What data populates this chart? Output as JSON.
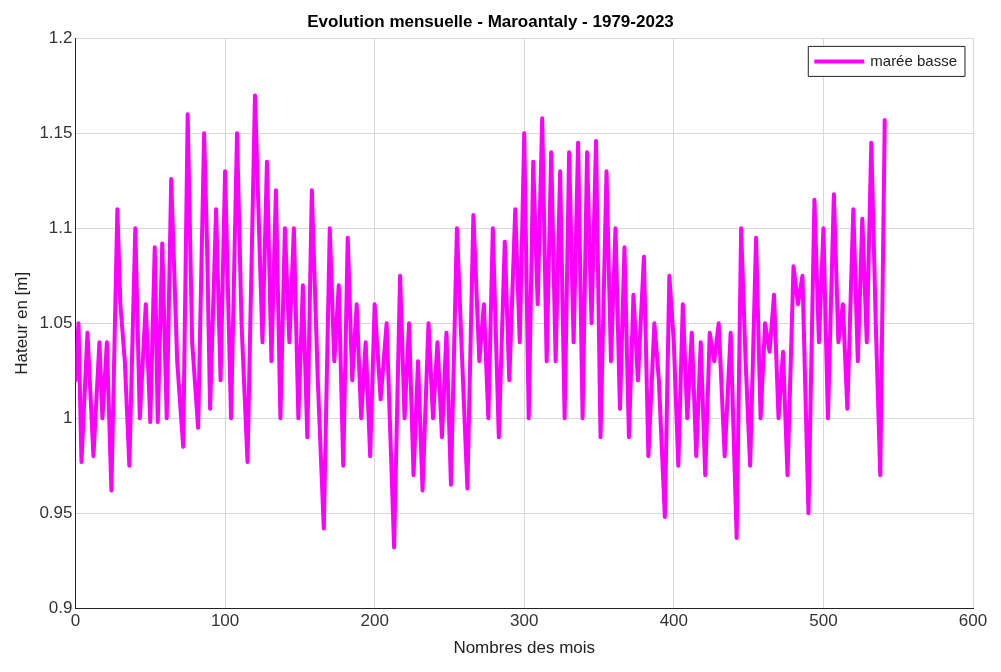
{
  "chart_data": {
    "type": "line",
    "title": "Evolution mensuelle - Maroantaly - 1979-2023",
    "xlabel": "Nombres des mois",
    "ylabel": "Hateur en [m]",
    "x": [
      0,
      2,
      4,
      8,
      12,
      16,
      18,
      21,
      24,
      28,
      30,
      33,
      36,
      40,
      43,
      47,
      50,
      53,
      55,
      58,
      61,
      64,
      68,
      72,
      75,
      78,
      82,
      86,
      88,
      90,
      94,
      97,
      100,
      104,
      108,
      111,
      115,
      120,
      125,
      128,
      131,
      134,
      137,
      140,
      143,
      146,
      149,
      152,
      155,
      158,
      162,
      166,
      170,
      173,
      176,
      179,
      182,
      185,
      188,
      191,
      194,
      197,
      200,
      204,
      208,
      213,
      217,
      220,
      223,
      226,
      229,
      232,
      236,
      239,
      242,
      245,
      248,
      251,
      255,
      258,
      262,
      266,
      270,
      273,
      276,
      279,
      283,
      287,
      290,
      294,
      297,
      300,
      303,
      306,
      309,
      312,
      315,
      318,
      321,
      324,
      327,
      330,
      333,
      336,
      339,
      342,
      345,
      348,
      351,
      355,
      358,
      361,
      364,
      367,
      370,
      373,
      376,
      380,
      383,
      387,
      390,
      394,
      397,
      400,
      403,
      406,
      409,
      412,
      415,
      418,
      421,
      424,
      427,
      430,
      434,
      438,
      442,
      445,
      448,
      451,
      455,
      458,
      461,
      464,
      467,
      470,
      473,
      476,
      480,
      483,
      486,
      490,
      494,
      497,
      500,
      503,
      507,
      510,
      513,
      516,
      520,
      523,
      526,
      529,
      532,
      535,
      538,
      541
    ],
    "series": [
      {
        "name": "marée basse",
        "color": "#ff00ff",
        "values": [
          1.02,
          1.05,
          0.977,
          1.045,
          0.98,
          1.04,
          1.0,
          1.04,
          0.962,
          1.11,
          1.06,
          1.03,
          0.975,
          1.1,
          1.0,
          1.06,
          0.998,
          1.09,
          0.998,
          1.092,
          1.0,
          1.126,
          1.03,
          0.985,
          1.16,
          1.04,
          0.995,
          1.15,
          1.09,
          1.005,
          1.11,
          1.02,
          1.13,
          1.0,
          1.15,
          1.05,
          0.977,
          1.17,
          1.04,
          1.135,
          1.03,
          1.12,
          1.0,
          1.1,
          1.04,
          1.1,
          1.0,
          1.07,
          0.99,
          1.12,
          1.02,
          0.942,
          1.1,
          1.03,
          1.07,
          0.975,
          1.095,
          1.02,
          1.06,
          1.0,
          1.04,
          0.98,
          1.06,
          1.01,
          1.05,
          0.932,
          1.075,
          1.0,
          1.05,
          0.97,
          1.03,
          0.962,
          1.05,
          1.0,
          1.04,
          0.99,
          1.045,
          0.965,
          1.1,
          1.04,
          0.963,
          1.107,
          1.03,
          1.06,
          1.0,
          1.1,
          0.99,
          1.093,
          1.02,
          1.11,
          1.04,
          1.15,
          1.0,
          1.135,
          1.06,
          1.158,
          1.03,
          1.14,
          1.03,
          1.13,
          1.0,
          1.14,
          1.04,
          1.145,
          1.0,
          1.14,
          1.05,
          1.146,
          0.99,
          1.13,
          1.03,
          1.1,
          1.005,
          1.09,
          0.99,
          1.065,
          1.02,
          1.085,
          0.98,
          1.05,
          1.02,
          0.948,
          1.075,
          1.04,
          0.975,
          1.06,
          1.0,
          1.045,
          0.98,
          1.04,
          0.97,
          1.045,
          1.03,
          1.05,
          0.98,
          1.045,
          0.937,
          1.1,
          1.03,
          0.975,
          1.095,
          1.0,
          1.05,
          1.035,
          1.065,
          1.0,
          1.035,
          0.97,
          1.08,
          1.06,
          1.075,
          0.95,
          1.115,
          1.04,
          1.1,
          1.0,
          1.118,
          1.04,
          1.06,
          1.005,
          1.11,
          1.03,
          1.105,
          1.04,
          1.145,
          1.05,
          0.97,
          1.157
        ]
      }
    ],
    "xlim": [
      0,
      600
    ],
    "xticks": [
      0,
      100,
      200,
      300,
      400,
      500,
      600
    ],
    "ylim": [
      0.9,
      1.2
    ],
    "yticks": [
      0.9,
      0.95,
      1,
      1.05,
      1.1,
      1.15,
      1.2
    ],
    "grid": true,
    "legend": "top right",
    "line_style": "solid",
    "marker": "none"
  }
}
